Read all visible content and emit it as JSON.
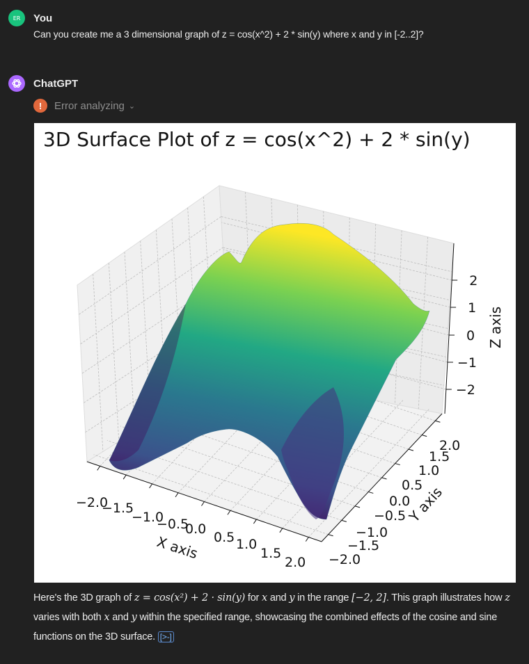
{
  "user": {
    "avatar_initials": "ER",
    "name": "You",
    "message": "Can you create me a 3 dimensional graph of z = cos(x^2) + 2 * sin(y) where x and y in [-2..2]?"
  },
  "assistant": {
    "name": "ChatGPT",
    "status": "Error analyzing",
    "response_parts": {
      "p1": "Here's the 3D graph of ",
      "eq": "z = cos(x²) + 2 · sin(y)",
      "p2": " for ",
      "x": "x",
      "p3": " and ",
      "y": "y",
      "p4": " in the range ",
      "range": "[−2, 2]",
      "p5": ". This graph illustrates how ",
      "z": "z",
      "p6": " varies with both ",
      "x2": "x",
      "p7": " and ",
      "y2": "y",
      "p8": " within the specified range, showcasing the combined effects of the cosine and sine functions on the 3D surface.",
      "cite": "[>-]"
    }
  },
  "colors": {
    "background": "#212121",
    "user_avatar": "#19c37d",
    "assistant_avatar": "#ab68ff",
    "error": "#e2683c"
  },
  "chart_data": {
    "type": "surface",
    "title": "3D Surface Plot of z = cos(x^2) + 2 * sin(y)",
    "xlabel": "X axis",
    "ylabel": "Y axis",
    "zlabel": "Z axis",
    "xlim": [
      -2,
      2
    ],
    "ylim": [
      -2,
      2
    ],
    "zticks": [
      "2",
      "1",
      "0",
      "−1",
      "−2"
    ],
    "xticks": [
      "−2.0",
      "−1.5",
      "−1.0",
      "−0.5",
      "0.0",
      "0.5",
      "1.0",
      "1.5",
      "2.0"
    ],
    "yticks": [
      "−2.0",
      "−1.5",
      "−1.0",
      "−0.5",
      "0.0",
      "0.5",
      "1.0",
      "1.5",
      "2.0"
    ],
    "colormap": "viridis",
    "grid": true
  }
}
